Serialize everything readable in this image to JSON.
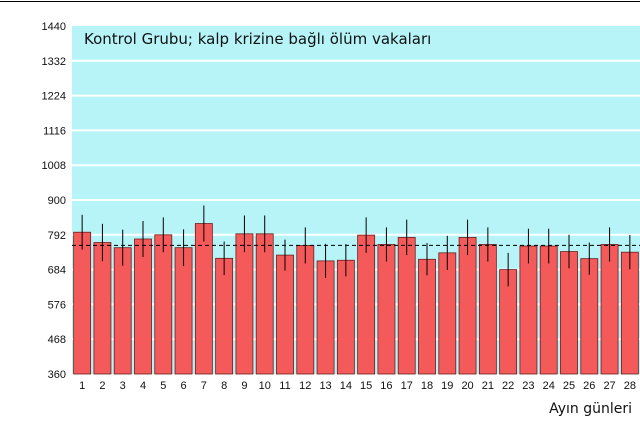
{
  "chart_data": {
    "type": "bar",
    "title": "Kontrol Grubu; kalp krizine bağlı ölüm vakaları",
    "xlabel": "Ayın günleri",
    "ylabel": "",
    "ylim": [
      360,
      1440
    ],
    "yticks": [
      360,
      468,
      576,
      684,
      792,
      900,
      1008,
      1116,
      1224,
      1332,
      1440
    ],
    "categories": [
      "1",
      "2",
      "3",
      "4",
      "5",
      "6",
      "7",
      "8",
      "9",
      "10",
      "11",
      "12",
      "13",
      "14",
      "15",
      "16",
      "17",
      "18",
      "19",
      "20",
      "21",
      "22",
      "23",
      "24",
      "25",
      "26",
      "27",
      "28"
    ],
    "values": [
      800,
      768,
      752,
      779,
      792,
      752,
      827,
      719,
      795,
      795,
      729,
      759,
      711,
      713,
      791,
      762,
      784,
      716,
      736,
      784,
      762,
      684,
      757,
      757,
      740,
      718,
      762,
      738
    ],
    "error": [
      54,
      58,
      56,
      56,
      54,
      57,
      56,
      52,
      57,
      57,
      48,
      56,
      53,
      50,
      55,
      53,
      55,
      50,
      53,
      55,
      53,
      52,
      54,
      54,
      52,
      50,
      53,
      53
    ],
    "reference_line": 759,
    "grid": true,
    "colors": {
      "plot_background": "#b7f4f8",
      "bar_fill": "#f55a5a",
      "bar_stroke": "#6b1f1f",
      "grid": "#ffffff",
      "reference_line": "#000000",
      "error_bar": "#000000"
    }
  }
}
